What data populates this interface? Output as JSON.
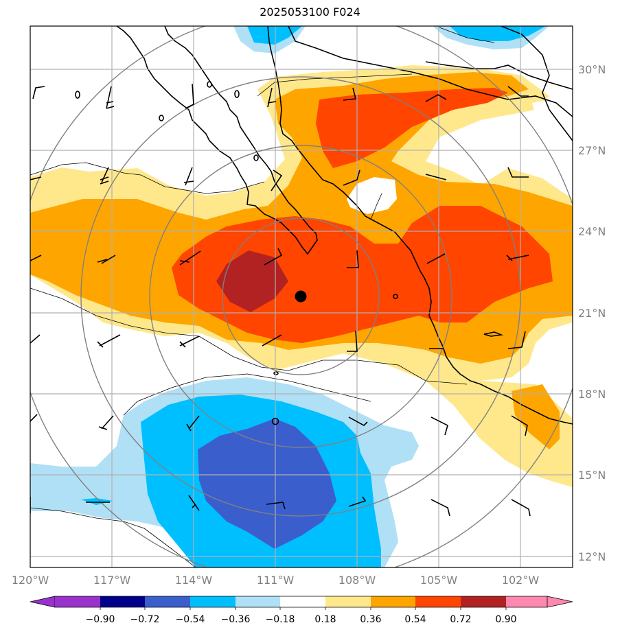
{
  "title": "2025053100 F024",
  "lat_labels": [
    "30°N",
    "27°N",
    "24°N",
    "21°N",
    "18°N",
    "15°N",
    "12°N"
  ],
  "lon_labels": [
    "120°W",
    "117°W",
    "114°W",
    "111°W",
    "108°W",
    "105°W",
    "102°W"
  ],
  "colorbar": {
    "ticks": [
      "−0.90",
      "−0.72",
      "−0.54",
      "−0.36",
      "−0.18",
      "0.18",
      "0.36",
      "0.54",
      "0.72",
      "0.90"
    ],
    "colors": {
      "under": "#9932cc",
      "b1": "#00008b",
      "b2": "#3a5fcd",
      "b3": "#00bfff",
      "b4": "#b0e0f6",
      "b5": "#ffffff",
      "b6": "#ffe88c",
      "b7": "#ffa500",
      "b8": "#ff4500",
      "b9": "#b22222",
      "over": "#ff88b0"
    }
  },
  "markers": {
    "center_dot": "filled black circle",
    "open_circle": "open black circle"
  }
}
